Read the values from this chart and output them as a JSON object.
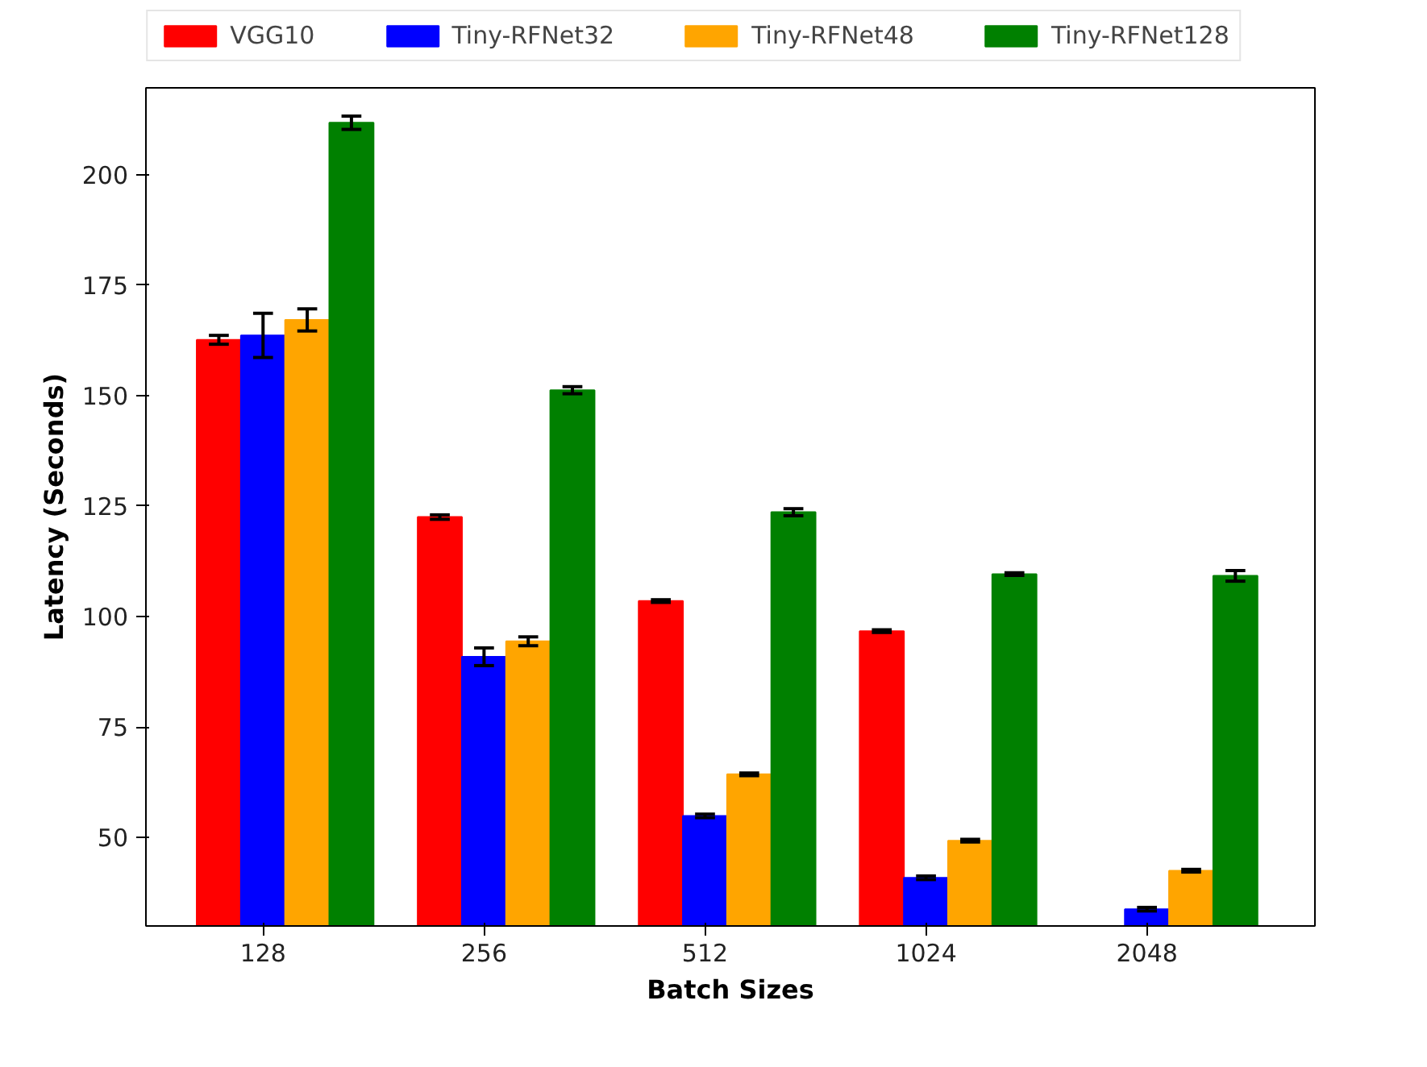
{
  "chart_data": {
    "type": "bar",
    "xlabel": "Batch Sizes",
    "ylabel": "Latency (Seconds)",
    "categories": [
      "128",
      "256",
      "512",
      "1024",
      "2048"
    ],
    "series": [
      {
        "name": "VGG10",
        "color": "#ff0000",
        "values": [
          162.6,
          122.5,
          103.5,
          96.7,
          null
        ],
        "errors": [
          1,
          0.5,
          0.3,
          0.3,
          null
        ]
      },
      {
        "name": "Tiny-RFNet32",
        "color": "#0000ff",
        "values": [
          163.6,
          90.9,
          54.9,
          40.9,
          33.8
        ],
        "errors": [
          5,
          2,
          0.4,
          0.4,
          0.4
        ]
      },
      {
        "name": "Tiny-RFNet48",
        "color": "#ffa500",
        "values": [
          167.1,
          94.4,
          64.3,
          49.3,
          42.5
        ],
        "errors": [
          2.5,
          1,
          0.3,
          0.3,
          0.3
        ]
      },
      {
        "name": "Tiny-RFNet128",
        "color": "#008000",
        "values": [
          211.7,
          151.2,
          123.6,
          109.6,
          109.2
        ],
        "errors": [
          1.5,
          0.8,
          0.8,
          0.3,
          1.2
        ]
      }
    ],
    "ylim": [
      30,
      219.6
    ],
    "yticks": [
      50,
      75,
      100,
      125,
      150,
      175,
      200
    ],
    "grid": false,
    "legend": "top"
  }
}
